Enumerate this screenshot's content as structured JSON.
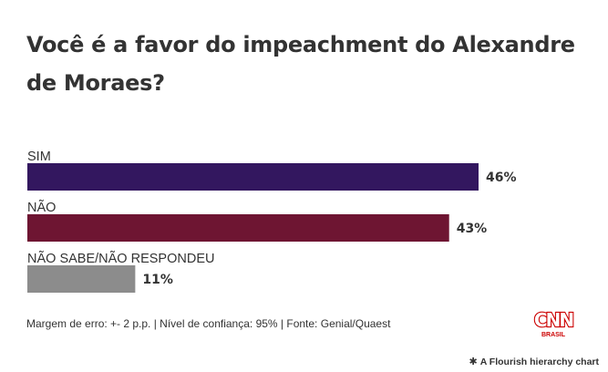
{
  "chart_data": {
    "type": "bar",
    "orientation": "horizontal",
    "title": "Você é a favor do impeachment do Alexandre de Moraes?",
    "categories": [
      "SIM",
      "NÃO",
      "NÃO SABE/NÃO RESPONDEU"
    ],
    "values": [
      46,
      43,
      11
    ],
    "value_labels": [
      "46%",
      "43%",
      "11%"
    ],
    "colors": [
      "#33175f",
      "#6e1532",
      "#8c8c8c"
    ],
    "xlim": [
      0,
      46
    ],
    "grid": false,
    "legend": "none"
  },
  "footer": {
    "note": "Margem de erro: +- 2 p.p. | Nível de confiança: 95% | Fonte: Genial/Quaest",
    "logo_text": "CNN",
    "logo_subtext": "BRASIL"
  },
  "credit": {
    "icon": "flourish-star-icon",
    "text": "A Flourish hierarchy chart"
  }
}
